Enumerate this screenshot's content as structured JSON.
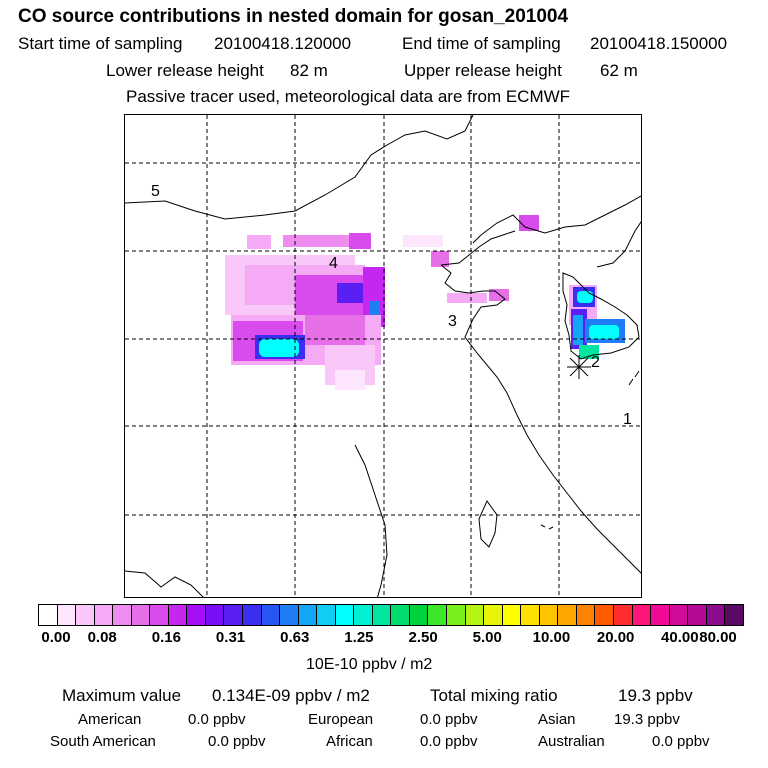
{
  "header": {
    "title": "CO  source contributions in nested domain for gosan_201004",
    "start_label": "Start time of sampling",
    "start_value": "20100418.120000",
    "end_label": "End time of sampling",
    "end_value": "20100418.150000",
    "lower_label": "Lower release height",
    "lower_value": "82 m",
    "upper_label": "Upper release height",
    "upper_value": "62 m",
    "note": "Passive tracer used, meteorological data are from ECMWF"
  },
  "map": {
    "region_labels": [
      "5",
      "4",
      "3",
      "2",
      "1"
    ],
    "grid": "dashed"
  },
  "colorbar": {
    "colors": [
      "#ffffff",
      "#fde6fd",
      "#f9c8f9",
      "#f4aaf4",
      "#ef8cef",
      "#e66ee6",
      "#d94bec",
      "#c327f0",
      "#a50ff5",
      "#7a0ff5",
      "#5a1ff2",
      "#3a2ff0",
      "#2a55f5",
      "#1f7df5",
      "#14a5f5",
      "#0fcdf5",
      "#00ffff",
      "#00f0d2",
      "#00e6a0",
      "#00dc6e",
      "#00d23c",
      "#3ce628",
      "#78f01e",
      "#b4f514",
      "#e6f50a",
      "#ffff00",
      "#ffe100",
      "#ffc300",
      "#ffa500",
      "#ff8200",
      "#ff5a00",
      "#ff2d2d",
      "#ff1478",
      "#f00a96",
      "#d20a9b",
      "#b40a96",
      "#8c0a8c",
      "#5a0a64"
    ],
    "ticks": [
      "0.00",
      "0.08",
      "0.16",
      "0.31",
      "0.63",
      "1.25",
      "2.50",
      "5.00",
      "10.00",
      "20.00",
      "40.00",
      "80.00"
    ],
    "units": "10E-10 ppbv / m2"
  },
  "summary": {
    "max_label": "Maximum value",
    "max_value": "0.134E-09 ppbv / m2",
    "total_label": "Total mixing ratio",
    "total_value": "19.3 ppbv",
    "american_label": "American",
    "american_value": "0.0 ppbv",
    "european_label": "European",
    "european_value": "0.0 ppbv",
    "asian_label": "Asian",
    "asian_value": "19.3 ppbv",
    "south_american_label": "South American",
    "south_american_value": "0.0 ppbv",
    "african_label": "African",
    "african_value": "0.0 ppbv",
    "australian_label": "Australian",
    "australian_value": "0.0 ppbv"
  }
}
